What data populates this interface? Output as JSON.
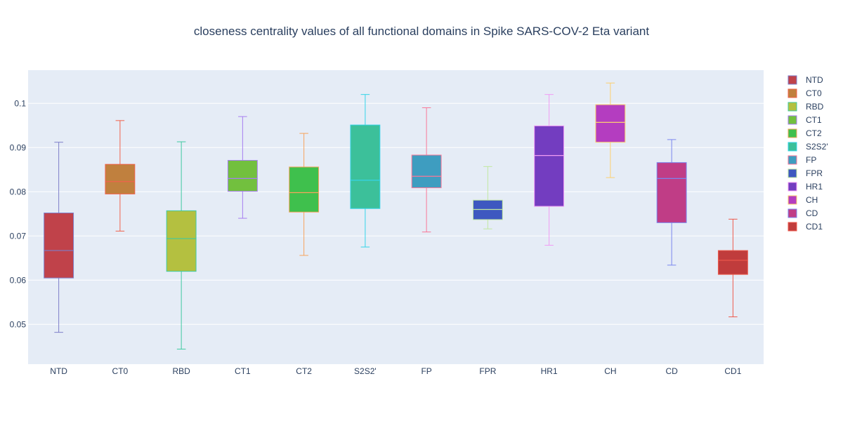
{
  "chart_data": {
    "type": "box",
    "title": "closeness centrality values of all functional domains in Spike SARS-COV-2 Eta variant",
    "xlabel": "",
    "ylabel": "",
    "ylim": [
      0.041,
      0.1075
    ],
    "yticks": [
      0.05,
      0.06,
      0.07,
      0.08,
      0.09,
      0.1
    ],
    "ytick_labels": [
      "0.05",
      "0.06",
      "0.07",
      "0.08",
      "0.09",
      "0.1"
    ],
    "grid": true,
    "legend_position": "right",
    "series": [
      {
        "name": "NTD",
        "min": 0.0482,
        "q1": 0.0605,
        "median": 0.0667,
        "q3": 0.0752,
        "max": 0.0912,
        "fill": "#c0424a",
        "line": "#7d7ec9"
      },
      {
        "name": "CT0",
        "min": 0.0711,
        "q1": 0.0795,
        "median": 0.0823,
        "q3": 0.0862,
        "max": 0.0961,
        "fill": "#c0803e",
        "line": "#f0624c"
      },
      {
        "name": "RBD",
        "min": 0.0444,
        "q1": 0.062,
        "median": 0.0694,
        "q3": 0.0757,
        "max": 0.0913,
        "fill": "#b4c040",
        "line": "#3fc9a0"
      },
      {
        "name": "CT1",
        "min": 0.074,
        "q1": 0.0801,
        "median": 0.083,
        "q3": 0.0871,
        "max": 0.097,
        "fill": "#72c03e",
        "line": "#a67ef0"
      },
      {
        "name": "CT2",
        "min": 0.0656,
        "q1": 0.0754,
        "median": 0.0798,
        "q3": 0.0856,
        "max": 0.0932,
        "fill": "#3fc04d",
        "line": "#f7a45c"
      },
      {
        "name": "S2S2'",
        "min": 0.0675,
        "q1": 0.0762,
        "median": 0.0826,
        "q3": 0.0951,
        "max": 0.102,
        "fill": "#3cc09a",
        "line": "#34d4e8"
      },
      {
        "name": "FP",
        "min": 0.0709,
        "q1": 0.0809,
        "median": 0.0835,
        "q3": 0.0883,
        "max": 0.099,
        "fill": "#3e9dc0",
        "line": "#fa7898"
      },
      {
        "name": "FPR",
        "min": 0.0716,
        "q1": 0.0737,
        "median": 0.076,
        "q3": 0.0781,
        "max": 0.0857,
        "fill": "#3e58c0",
        "line": "#c2e8a0"
      },
      {
        "name": "HR1",
        "min": 0.0679,
        "q1": 0.0767,
        "median": 0.0882,
        "q3": 0.0949,
        "max": 0.102,
        "fill": "#733dc0",
        "line": "#f09cf4"
      },
      {
        "name": "CH",
        "min": 0.0832,
        "q1": 0.0912,
        "median": 0.0957,
        "q3": 0.0997,
        "max": 0.1046,
        "fill": "#b43dc0",
        "line": "#fcd070"
      },
      {
        "name": "CD",
        "min": 0.0634,
        "q1": 0.073,
        "median": 0.083,
        "q3": 0.0866,
        "max": 0.0918,
        "fill": "#c03d86",
        "line": "#7a86ee"
      },
      {
        "name": "CD1",
        "min": 0.0517,
        "q1": 0.0613,
        "median": 0.0645,
        "q3": 0.0667,
        "max": 0.0738,
        "fill": "#c03c3c",
        "line": "#ee5a4c"
      }
    ]
  }
}
